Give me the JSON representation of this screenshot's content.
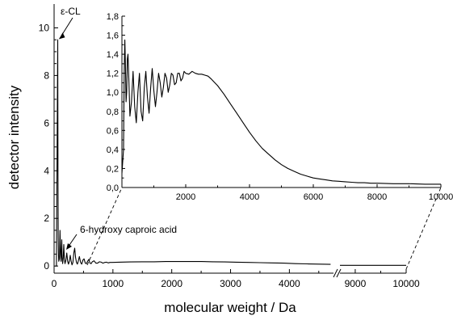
{
  "chart_data": {
    "type": "line",
    "main": {
      "xlabel": "molecular weight / Da",
      "ylabel": "detector intensity",
      "xlim": [
        0,
        10000
      ],
      "x_break": [
        4750,
        8700
      ],
      "ylim": [
        -0.3,
        11
      ],
      "x_ticks": [
        0,
        1000,
        2000,
        3000,
        4000,
        9000,
        10000
      ],
      "x_tick_labels": [
        "0",
        "1000",
        "2000",
        "3000",
        "4000",
        "9000",
        "10000"
      ],
      "y_ticks": [
        0,
        2,
        4,
        6,
        8,
        10
      ],
      "y_tick_labels": [
        "0",
        "2",
        "4",
        "6",
        "8",
        "10"
      ],
      "series": [
        {
          "x": [
            20,
            40,
            62,
            66,
            70,
            74,
            80,
            90,
            100,
            110,
            118,
            124,
            130,
            136,
            145,
            155,
            165,
            175,
            185,
            200,
            215,
            230,
            245,
            260,
            275,
            290,
            305,
            320,
            335,
            350,
            365,
            380,
            395,
            410,
            430,
            450,
            470,
            490,
            510,
            530,
            550,
            570,
            590,
            610,
            630,
            650,
            680,
            710,
            740,
            770,
            800,
            830,
            860,
            890,
            920,
            950,
            990,
            1100,
            1300,
            1500,
            1700,
            1900,
            2100,
            2300,
            2500,
            2700,
            2900,
            3100,
            3300,
            3500,
            3700,
            3900,
            4100,
            4300,
            4500,
            4700
          ],
          "y": [
            0.0,
            0.0,
            9.5,
            4.0,
            1.2,
            0.5,
            0.2,
            0.3,
            1.5,
            0.5,
            0.2,
            0.6,
            1.1,
            0.4,
            0.1,
            0.35,
            0.9,
            0.3,
            0.1,
            0.25,
            0.55,
            0.2,
            0.08,
            0.2,
            0.45,
            0.2,
            0.05,
            0.15,
            0.55,
            0.75,
            0.35,
            0.15,
            0.08,
            0.2,
            0.4,
            0.15,
            0.08,
            0.25,
            0.3,
            0.12,
            0.1,
            0.2,
            0.28,
            0.12,
            0.1,
            0.18,
            0.22,
            0.12,
            0.12,
            0.18,
            0.16,
            0.12,
            0.15,
            0.16,
            0.13,
            0.15,
            0.15,
            0.16,
            0.17,
            0.18,
            0.18,
            0.19,
            0.19,
            0.19,
            0.19,
            0.18,
            0.17,
            0.16,
            0.15,
            0.14,
            0.13,
            0.12,
            0.1,
            0.09,
            0.08,
            0.07
          ]
        },
        {
          "x": [
            8700,
            9000,
            9500,
            10000
          ],
          "y": [
            0.03,
            0.03,
            0.03,
            0.03
          ]
        }
      ],
      "annotations": [
        {
          "text": "ε-CL",
          "x": 62,
          "y": 9.6
        },
        {
          "text": "6-hydroxy caproic acid",
          "x": 250,
          "y": 0.9
        }
      ]
    },
    "inset": {
      "xlim": [
        0,
        10000
      ],
      "ylim": [
        0,
        1.8
      ],
      "x_ticks": [
        2000,
        4000,
        6000,
        8000,
        10000
      ],
      "x_tick_labels": [
        "2000",
        "4000",
        "6000",
        "8000",
        "10000"
      ],
      "y_ticks": [
        0,
        0.2,
        0.4,
        0.6,
        0.8,
        1.0,
        1.2,
        1.4,
        1.6,
        1.8
      ],
      "y_tick_labels": [
        "0,0",
        "0,2",
        "0,4",
        "0,6",
        "0,8",
        "1,0",
        "1,2",
        "1,4",
        "1,6",
        "1,8"
      ],
      "series": [
        {
          "x": [
            0,
            50,
            70,
            90,
            110,
            130,
            150,
            170,
            190,
            220,
            250,
            300,
            350,
            400,
            450,
            500,
            550,
            600,
            650,
            700,
            750,
            800,
            850,
            900,
            950,
            1000,
            1050,
            1100,
            1150,
            1200,
            1250,
            1300,
            1350,
            1400,
            1450,
            1500,
            1550,
            1600,
            1650,
            1700,
            1750,
            1800,
            1850,
            1900,
            1950,
            2000,
            2100,
            2200,
            2300,
            2400,
            2500,
            2600,
            2700,
            2800,
            3000,
            3200,
            3400,
            3600,
            3800,
            4000,
            4200,
            4400,
            4600,
            4800,
            5000,
            5200,
            5400,
            5600,
            5800,
            6000,
            6200,
            6400,
            6600,
            6800,
            7000,
            7200,
            7400,
            7600,
            7800,
            8000,
            8500,
            9000,
            9500,
            10000
          ],
          "y": [
            0.15,
            0.4,
            1.2,
            1.55,
            1.3,
            0.9,
            1.0,
            1.35,
            1.4,
            1.1,
            0.75,
            0.9,
            1.22,
            0.85,
            0.68,
            1.0,
            1.2,
            0.8,
            0.7,
            1.05,
            1.22,
            0.95,
            0.78,
            1.05,
            1.25,
            1.02,
            0.85,
            1.0,
            1.2,
            1.1,
            0.95,
            1.05,
            1.2,
            1.15,
            1.0,
            1.08,
            1.2,
            1.18,
            1.08,
            1.1,
            1.2,
            1.2,
            1.12,
            1.15,
            1.22,
            1.2,
            1.19,
            1.22,
            1.2,
            1.19,
            1.19,
            1.18,
            1.17,
            1.14,
            1.07,
            0.98,
            0.88,
            0.78,
            0.68,
            0.58,
            0.49,
            0.41,
            0.35,
            0.29,
            0.24,
            0.2,
            0.17,
            0.14,
            0.12,
            0.1,
            0.09,
            0.08,
            0.07,
            0.065,
            0.06,
            0.055,
            0.05,
            0.05,
            0.045,
            0.045,
            0.04,
            0.04,
            0.035,
            0.035
          ]
        }
      ]
    }
  }
}
